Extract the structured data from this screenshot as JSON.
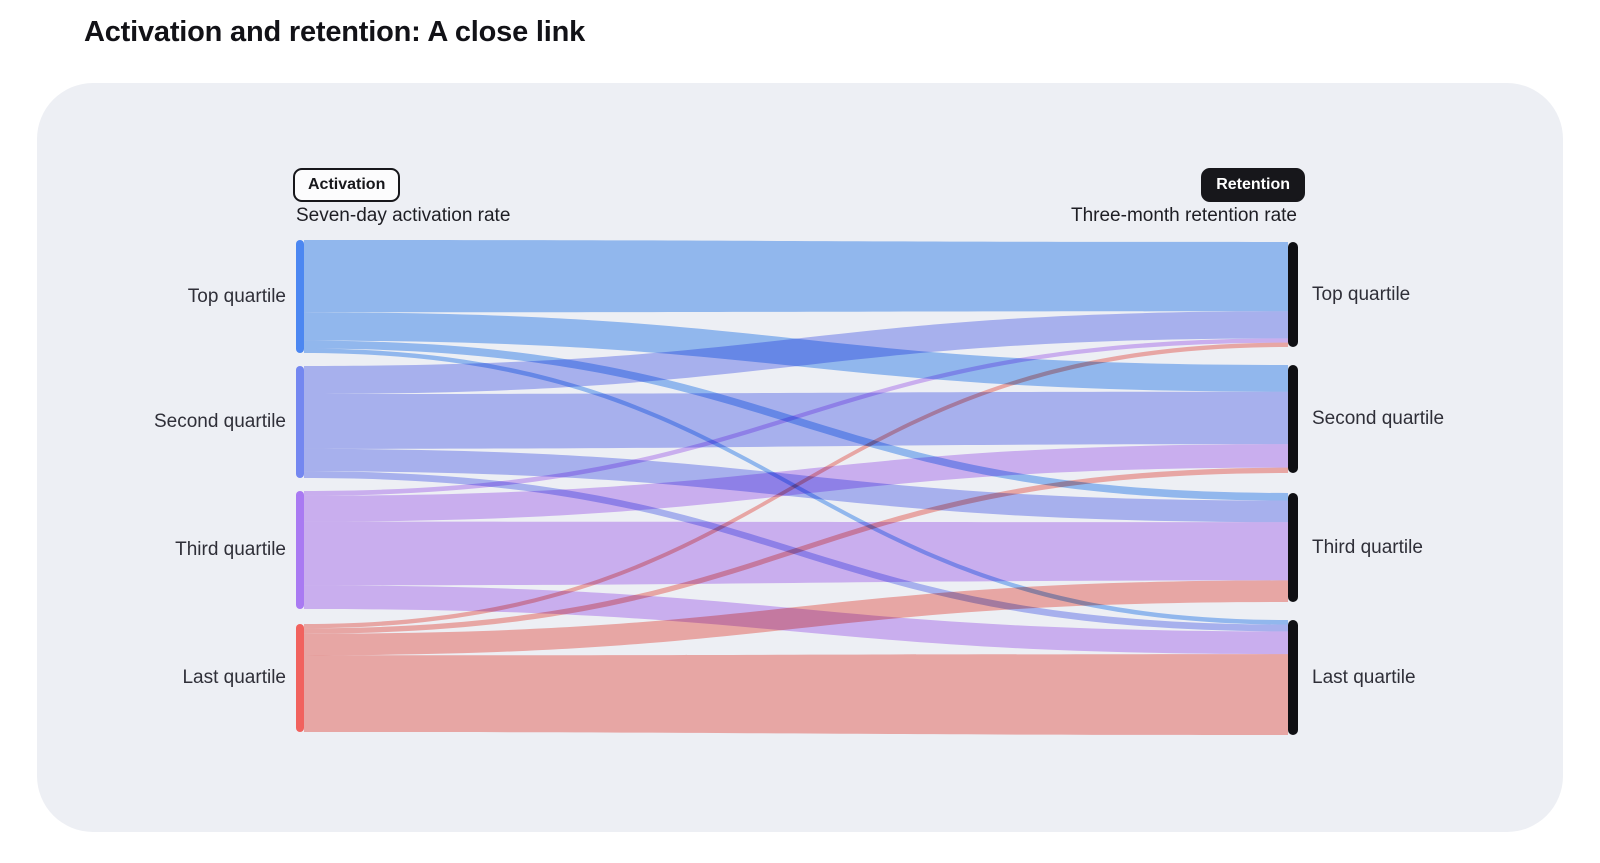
{
  "page": {
    "title": "Activation and retention: A close link"
  },
  "panel": {
    "activation_badge": "Activation",
    "retention_badge": "Retention",
    "activation_subtitle": "Seven-day activation rate",
    "retention_subtitle": "Three-month retention rate"
  },
  "colors": {
    "page_background": "#ffffff",
    "card_background": "#edeff4",
    "title_text": "#121217",
    "badge_outline": "#17171b",
    "right_node_bar": "#0f0f13"
  },
  "chart_data": {
    "type": "sankey",
    "title": "Activation and retention: A close link",
    "left_column_label": "Seven-day activation rate",
    "right_column_label": "Three-month retention rate",
    "value_note": "Flow widths estimated from pixels; value = approx. % of each activation quartile flowing to each retention quartile",
    "left_nodes": [
      {
        "label": "Top quartile",
        "color": "#4c87f1",
        "flow_color": "#9cc3f8"
      },
      {
        "label": "Second quartile",
        "color": "#7487f0",
        "flow_color": "#b4bcf8"
      },
      {
        "label": "Third quartile",
        "color": "#a97af2",
        "flow_color": "#d9baf9"
      },
      {
        "label": "Last quartile",
        "color": "#f1625e",
        "flow_color": "#f9b1ac"
      }
    ],
    "right_nodes": [
      {
        "label": "Top quartile",
        "color": "#0f0f13"
      },
      {
        "label": "Second quartile",
        "color": "#0f0f13"
      },
      {
        "label": "Third quartile",
        "color": "#0f0f13"
      },
      {
        "label": "Last quartile",
        "color": "#0f0f13"
      }
    ],
    "flows": [
      {
        "from": 0,
        "to": 0,
        "from_label": "Top quartile",
        "to_label": "Top quartile",
        "value": 64
      },
      {
        "from": 0,
        "to": 1,
        "from_label": "Top quartile",
        "to_label": "Second quartile",
        "value": 25
      },
      {
        "from": 0,
        "to": 2,
        "from_label": "Top quartile",
        "to_label": "Third quartile",
        "value": 7
      },
      {
        "from": 0,
        "to": 3,
        "from_label": "Top quartile",
        "to_label": "Last quartile",
        "value": 4
      },
      {
        "from": 1,
        "to": 0,
        "from_label": "Second quartile",
        "to_label": "Top quartile",
        "value": 25
      },
      {
        "from": 1,
        "to": 1,
        "from_label": "Second quartile",
        "to_label": "Second quartile",
        "value": 49
      },
      {
        "from": 1,
        "to": 2,
        "from_label": "Second quartile",
        "to_label": "Third quartile",
        "value": 20
      },
      {
        "from": 1,
        "to": 3,
        "from_label": "Second quartile",
        "to_label": "Last quartile",
        "value": 6
      },
      {
        "from": 2,
        "to": 0,
        "from_label": "Third quartile",
        "to_label": "Top quartile",
        "value": 4
      },
      {
        "from": 2,
        "to": 1,
        "from_label": "Third quartile",
        "to_label": "Second quartile",
        "value": 22
      },
      {
        "from": 2,
        "to": 2,
        "from_label": "Third quartile",
        "to_label": "Third quartile",
        "value": 54
      },
      {
        "from": 2,
        "to": 3,
        "from_label": "Third quartile",
        "to_label": "Last quartile",
        "value": 20
      },
      {
        "from": 3,
        "to": 0,
        "from_label": "Last quartile",
        "to_label": "Top quartile",
        "value": 4
      },
      {
        "from": 3,
        "to": 1,
        "from_label": "Last quartile",
        "to_label": "Second quartile",
        "value": 5
      },
      {
        "from": 3,
        "to": 2,
        "from_label": "Last quartile",
        "to_label": "Third quartile",
        "value": 20
      },
      {
        "from": 3,
        "to": 3,
        "from_label": "Last quartile",
        "to_label": "Last quartile",
        "value": 71
      }
    ]
  }
}
